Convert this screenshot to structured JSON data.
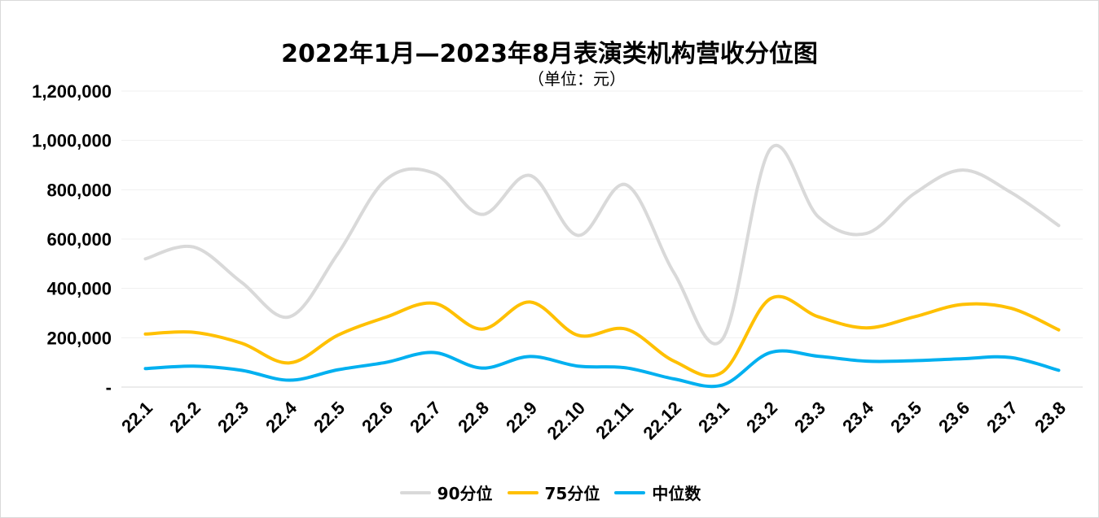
{
  "chart_data": {
    "type": "line",
    "title": "2022年1月—2023年8月表演类机构营收分位图",
    "subtitle": "（单位：元）",
    "xlabel": "",
    "ylabel": "",
    "ylim": [
      0,
      1200000
    ],
    "grid": true,
    "legend_position": "bottom",
    "yticks": [
      {
        "value": 0,
        "label": "-"
      },
      {
        "value": 200000,
        "label": "200,000"
      },
      {
        "value": 400000,
        "label": "400,000"
      },
      {
        "value": 600000,
        "label": "600,000"
      },
      {
        "value": 800000,
        "label": "800,000"
      },
      {
        "value": 1000000,
        "label": "1,000,000"
      },
      {
        "value": 1200000,
        "label": "1,200,000"
      }
    ],
    "categories": [
      "22.1",
      "22.2",
      "22.3",
      "22.4",
      "22.5",
      "22.6",
      "22.7",
      "22.8",
      "22.9",
      "22.10",
      "22.11",
      "22.12",
      "23.1",
      "23.2",
      "23.3",
      "23.4",
      "23.5",
      "23.6",
      "23.7",
      "23.8"
    ],
    "series": [
      {
        "name": "90分位",
        "color": "#d9d9d9",
        "values": [
          520000,
          568000,
          425000,
          285000,
          540000,
          840000,
          868000,
          700000,
          858000,
          615000,
          820000,
          462000,
          193000,
          965000,
          690000,
          623000,
          785000,
          880000,
          790000,
          655000
        ]
      },
      {
        "name": "75分位",
        "color": "#ffc000",
        "values": [
          215000,
          222000,
          178000,
          98000,
          210000,
          283000,
          340000,
          235000,
          345000,
          210000,
          235000,
          105000,
          60000,
          358000,
          285000,
          240000,
          285000,
          335000,
          320000,
          232000
        ]
      },
      {
        "name": "中位数",
        "color": "#00b0f0",
        "values": [
          75000,
          85000,
          68000,
          28000,
          70000,
          100000,
          140000,
          77000,
          124000,
          85000,
          78000,
          33000,
          8000,
          140000,
          125000,
          105000,
          107000,
          115000,
          120000,
          68000
        ]
      }
    ]
  }
}
